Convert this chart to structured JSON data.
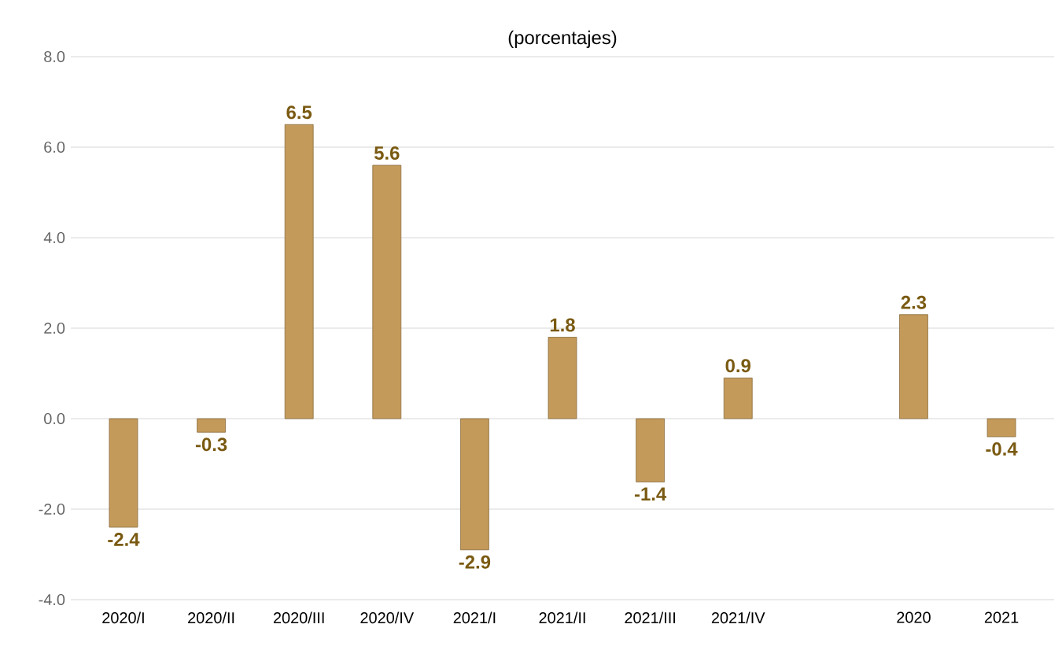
{
  "chart_data": {
    "type": "bar",
    "subtitle": "(porcentajes)",
    "categories": [
      "2020/I",
      "2020/II",
      "2020/III",
      "2020/IV",
      "2021/I",
      "2021/II",
      "2021/III",
      "2021/IV",
      null,
      "2020",
      "2021"
    ],
    "values": [
      -2.4,
      -0.3,
      6.5,
      5.6,
      -2.9,
      1.8,
      -1.4,
      0.9,
      null,
      2.3,
      -0.4
    ],
    "color": "#c49a5a",
    "data_labels": true,
    "ylim": [
      -4,
      8
    ],
    "yticks": [
      {
        "value": -4,
        "label": "-4.0"
      },
      {
        "value": -2,
        "label": "-2.0"
      },
      {
        "value": 0,
        "label": "0.0"
      },
      {
        "value": 2,
        "label": "2.0"
      },
      {
        "value": 4,
        "label": "4.0"
      },
      {
        "value": 6,
        "label": "6.0"
      },
      {
        "value": 8,
        "label": "8.0"
      }
    ],
    "grid": "y"
  }
}
